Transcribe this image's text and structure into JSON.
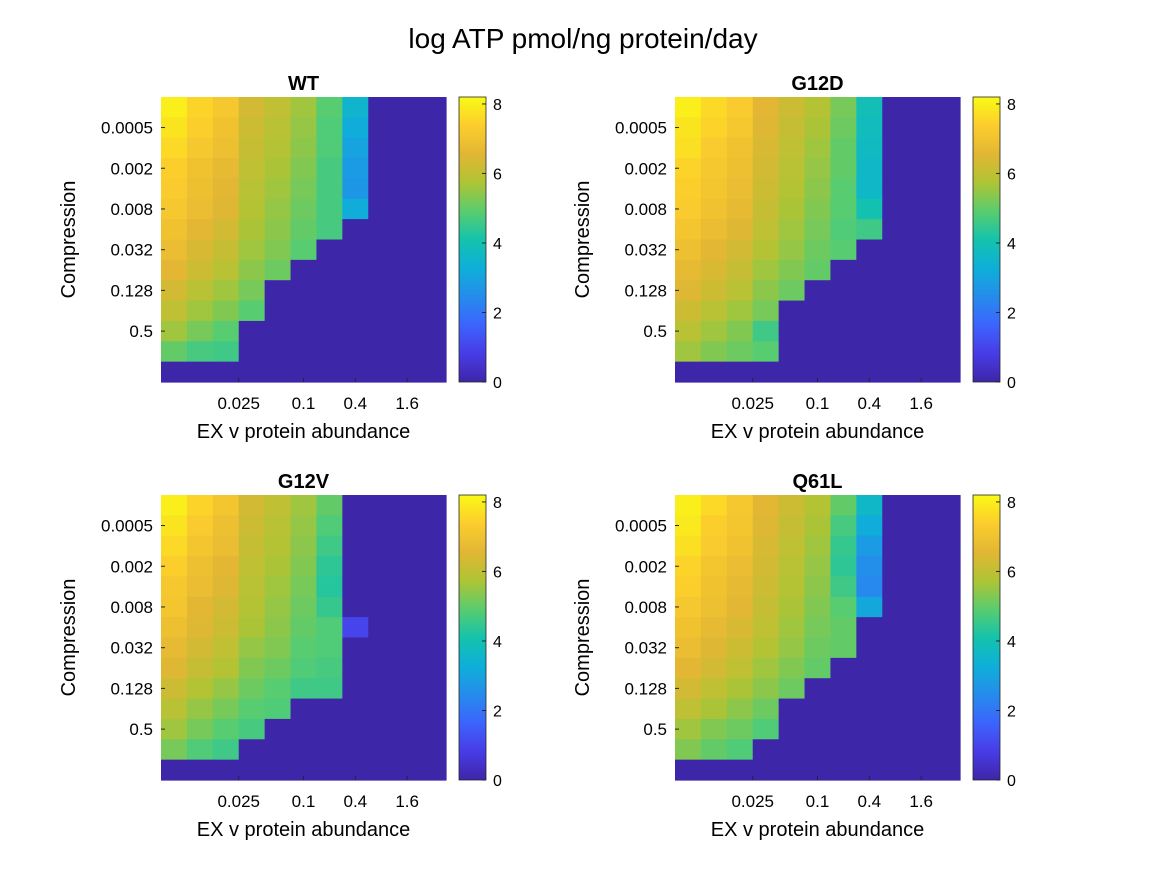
{
  "chart_data": {
    "type": "heatmap",
    "title": "log ATP pmol/ng protein/day",
    "colormap": "parula",
    "color_range": [
      0,
      8.2
    ],
    "colorbar_ticks": [
      "0",
      "2",
      "4",
      "6",
      "8"
    ],
    "xlabel": "EX v protein abundance",
    "ylabel": "Compression",
    "x_tick_labels": [
      "0.025",
      "0.1",
      "0.4",
      "1.6"
    ],
    "y_tick_labels": [
      "0.0005",
      "0.002",
      "0.008",
      "0.032",
      "0.128",
      "0.5"
    ],
    "panels": [
      {
        "title": "WT",
        "grid": [
          [
            8.0,
            7.5,
            7.2,
            6.3,
            6.0,
            5.6,
            4.9,
            3.5,
            0,
            0,
            0
          ],
          [
            7.8,
            7.4,
            7.0,
            6.2,
            5.9,
            5.5,
            4.8,
            3.2,
            0,
            0,
            0
          ],
          [
            7.6,
            7.2,
            6.9,
            6.1,
            5.8,
            5.4,
            4.8,
            3.0,
            0,
            0,
            0
          ],
          [
            7.4,
            7.0,
            6.7,
            6.0,
            5.7,
            5.3,
            4.7,
            2.8,
            0,
            0,
            0
          ],
          [
            7.3,
            6.9,
            6.6,
            5.9,
            5.6,
            5.2,
            4.7,
            2.7,
            0,
            0,
            0
          ],
          [
            7.2,
            6.8,
            6.5,
            5.8,
            5.5,
            5.1,
            4.7,
            3.2,
            0,
            0,
            0
          ],
          [
            7.0,
            6.6,
            6.3,
            5.7,
            5.4,
            5.0,
            4.7,
            0,
            0,
            0,
            0
          ],
          [
            6.8,
            6.4,
            6.1,
            5.6,
            5.3,
            4.9,
            0,
            0,
            0,
            0,
            0
          ],
          [
            6.6,
            6.2,
            5.9,
            5.4,
            5.1,
            0,
            0,
            0,
            0,
            0,
            0
          ],
          [
            6.3,
            5.9,
            5.6,
            5.2,
            0,
            0,
            0,
            0,
            0,
            0,
            0
          ],
          [
            6.0,
            5.6,
            5.3,
            4.9,
            0,
            0,
            0,
            0,
            0,
            0,
            0
          ],
          [
            5.6,
            5.2,
            4.9,
            0,
            0,
            0,
            0,
            0,
            0,
            0,
            0
          ],
          [
            5.0,
            4.7,
            4.6,
            0,
            0,
            0,
            0,
            0,
            0,
            0,
            0
          ],
          [
            0,
            0,
            0,
            0,
            0,
            0,
            0,
            0,
            0,
            0,
            0
          ]
        ]
      },
      {
        "title": "G12D",
        "grid": [
          [
            8.0,
            7.6,
            7.3,
            6.6,
            6.2,
            5.8,
            5.2,
            3.9,
            0,
            0,
            0
          ],
          [
            7.8,
            7.5,
            7.2,
            6.5,
            6.1,
            5.7,
            5.1,
            3.8,
            0,
            0,
            0
          ],
          [
            7.7,
            7.3,
            7.0,
            6.4,
            6.0,
            5.6,
            5.0,
            3.7,
            0,
            0,
            0
          ],
          [
            7.5,
            7.2,
            6.9,
            6.3,
            5.9,
            5.5,
            5.0,
            3.6,
            0,
            0,
            0
          ],
          [
            7.4,
            7.1,
            6.8,
            6.2,
            5.8,
            5.4,
            4.9,
            3.6,
            0,
            0,
            0
          ],
          [
            7.3,
            7.0,
            6.7,
            6.1,
            5.7,
            5.3,
            4.9,
            4.0,
            0,
            0,
            0
          ],
          [
            7.1,
            6.8,
            6.5,
            6.0,
            5.6,
            5.2,
            4.8,
            4.6,
            0,
            0,
            0
          ],
          [
            6.9,
            6.6,
            6.3,
            5.8,
            5.5,
            5.1,
            4.9,
            0,
            0,
            0,
            0
          ],
          [
            6.7,
            6.4,
            6.1,
            5.6,
            5.3,
            5.0,
            0,
            0,
            0,
            0,
            0
          ],
          [
            6.5,
            6.2,
            5.9,
            5.4,
            5.1,
            0,
            0,
            0,
            0,
            0,
            0
          ],
          [
            6.2,
            5.9,
            5.6,
            5.2,
            0,
            0,
            0,
            0,
            0,
            0,
            0
          ],
          [
            5.9,
            5.6,
            5.3,
            4.6,
            0,
            0,
            0,
            0,
            0,
            0,
            0
          ],
          [
            5.6,
            5.3,
            5.1,
            4.9,
            0,
            0,
            0,
            0,
            0,
            0,
            0
          ],
          [
            0,
            0,
            0,
            0,
            0,
            0,
            0,
            0,
            0,
            0,
            0
          ]
        ]
      },
      {
        "title": "G12V",
        "grid": [
          [
            8.0,
            7.5,
            7.1,
            6.3,
            6.0,
            5.6,
            5.0,
            0,
            0,
            0,
            0
          ],
          [
            7.8,
            7.3,
            6.9,
            6.2,
            5.9,
            5.5,
            4.8,
            0,
            0,
            0,
            0
          ],
          [
            7.6,
            7.1,
            6.8,
            6.1,
            5.8,
            5.4,
            4.6,
            0,
            0,
            0,
            0
          ],
          [
            7.4,
            6.9,
            6.6,
            6.0,
            5.7,
            5.3,
            4.4,
            0,
            0,
            0,
            0
          ],
          [
            7.2,
            6.8,
            6.5,
            5.9,
            5.6,
            5.2,
            4.3,
            0,
            0,
            0,
            0
          ],
          [
            7.1,
            6.6,
            6.3,
            5.8,
            5.5,
            5.1,
            4.5,
            0,
            0,
            0,
            0
          ],
          [
            6.9,
            6.5,
            6.2,
            5.7,
            5.4,
            5.0,
            4.8,
            1.0,
            0,
            0,
            0
          ],
          [
            6.7,
            6.3,
            6.0,
            5.5,
            5.3,
            4.9,
            4.8,
            0,
            0,
            0,
            0
          ],
          [
            6.5,
            6.1,
            5.8,
            5.3,
            5.1,
            4.8,
            4.7,
            0,
            0,
            0,
            0
          ],
          [
            6.2,
            5.8,
            5.5,
            5.1,
            4.9,
            4.6,
            4.6,
            0,
            0,
            0,
            0
          ],
          [
            5.9,
            5.5,
            5.2,
            4.9,
            4.8,
            0,
            0,
            0,
            0,
            0,
            0
          ],
          [
            5.6,
            5.2,
            4.9,
            4.7,
            0,
            0,
            0,
            0,
            0,
            0,
            0
          ],
          [
            5.2,
            4.8,
            4.6,
            0,
            0,
            0,
            0,
            0,
            0,
            0,
            0
          ],
          [
            0,
            0,
            0,
            0,
            0,
            0,
            0,
            0,
            0,
            0,
            0
          ]
        ]
      },
      {
        "title": "Q61L",
        "grid": [
          [
            8.0,
            7.6,
            7.2,
            6.6,
            6.2,
            5.8,
            5.0,
            3.6,
            0,
            0,
            0
          ],
          [
            7.9,
            7.4,
            7.1,
            6.5,
            6.1,
            5.7,
            4.7,
            3.2,
            0,
            0,
            0
          ],
          [
            7.7,
            7.3,
            7.0,
            6.4,
            6.0,
            5.6,
            4.5,
            2.8,
            0,
            0,
            0
          ],
          [
            7.5,
            7.1,
            6.8,
            6.3,
            5.9,
            5.5,
            4.4,
            2.5,
            0,
            0,
            0
          ],
          [
            7.4,
            7.0,
            6.7,
            6.2,
            5.8,
            5.4,
            4.6,
            2.4,
            0,
            0,
            0
          ],
          [
            7.2,
            6.9,
            6.6,
            6.1,
            5.7,
            5.3,
            4.9,
            3.1,
            0,
            0,
            0
          ],
          [
            7.0,
            6.7,
            6.4,
            6.0,
            5.6,
            5.2,
            5.0,
            0,
            0,
            0,
            0
          ],
          [
            6.8,
            6.5,
            6.2,
            5.8,
            5.5,
            5.1,
            5.0,
            0,
            0,
            0,
            0
          ],
          [
            6.6,
            6.3,
            6.0,
            5.6,
            5.3,
            5.0,
            0,
            0,
            0,
            0,
            0
          ],
          [
            6.3,
            6.0,
            5.7,
            5.4,
            5.1,
            0,
            0,
            0,
            0,
            0,
            0
          ],
          [
            6.0,
            5.7,
            5.4,
            5.1,
            0,
            0,
            0,
            0,
            0,
            0,
            0
          ],
          [
            5.6,
            5.3,
            5.1,
            4.8,
            0,
            0,
            0,
            0,
            0,
            0,
            0
          ],
          [
            5.3,
            5.0,
            4.8,
            0,
            0,
            0,
            0,
            0,
            0,
            0,
            0
          ],
          [
            0,
            0,
            0,
            0,
            0,
            0,
            0,
            0,
            0,
            0,
            0
          ]
        ]
      }
    ]
  }
}
